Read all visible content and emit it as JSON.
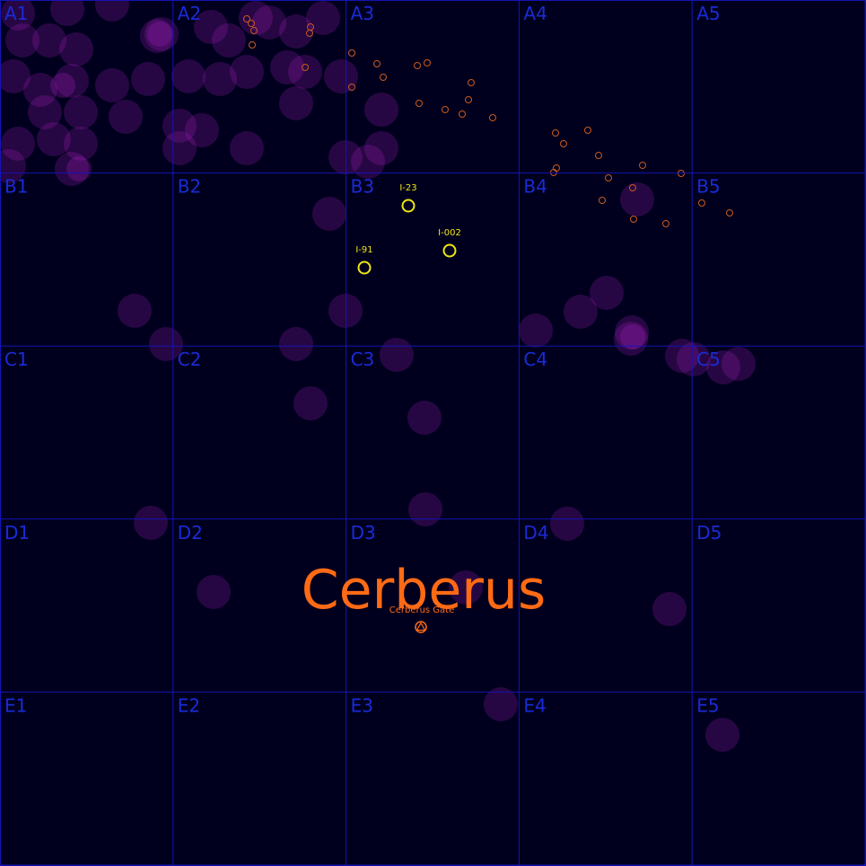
{
  "map": {
    "region_name": "Cerberus",
    "colors": {
      "background": "#00001e",
      "grid": "#1414b4",
      "grid_label": "#1a2bd6",
      "nebula": "#b020c8",
      "star": "#c85a1e",
      "interest_point": "#f0e614",
      "region": "#ff6a14",
      "gate": "#ff6a14"
    },
    "columns": [
      "1",
      "2",
      "3",
      "4",
      "5"
    ],
    "rows": [
      "A",
      "B",
      "C",
      "D",
      "E"
    ],
    "grid_labels": [
      "A1",
      "A2",
      "A3",
      "A4",
      "A5",
      "B1",
      "B2",
      "B3",
      "B4",
      "B5",
      "C1",
      "C2",
      "C3",
      "C4",
      "C5",
      "D1",
      "D2",
      "D3",
      "D4",
      "D5",
      "E1",
      "E2",
      "E3",
      "E4",
      "E5"
    ],
    "gate": {
      "label": "Cerberus Gate",
      "icon": "gate-icon"
    },
    "interest_points": [
      {
        "label": "I-23"
      },
      {
        "label": "I-002"
      },
      {
        "label": "I-91"
      }
    ]
  }
}
